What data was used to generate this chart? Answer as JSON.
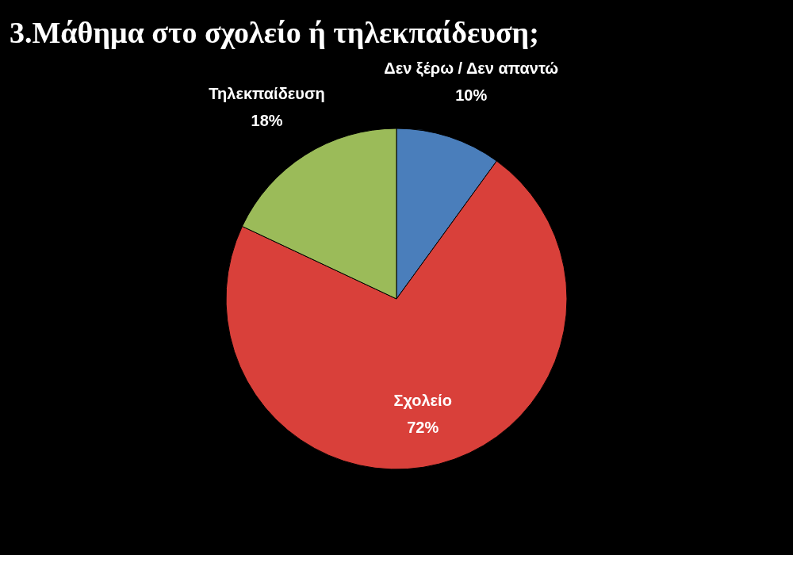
{
  "chart_data": {
    "type": "pie",
    "title": "3.Μάθημα στο σχολείο ή τηλεκπαίδευση;",
    "categories": [
      "Δεν ξέρω / Δεν απαντώ",
      "Σχολείο",
      "Τηλεκπαίδευση"
    ],
    "values": [
      10,
      72,
      18
    ],
    "colors": [
      "#4a7ebb",
      "#d9403a",
      "#9bbb59"
    ],
    "value_labels": [
      "10%",
      "72%",
      "18%"
    ],
    "legend": false
  }
}
